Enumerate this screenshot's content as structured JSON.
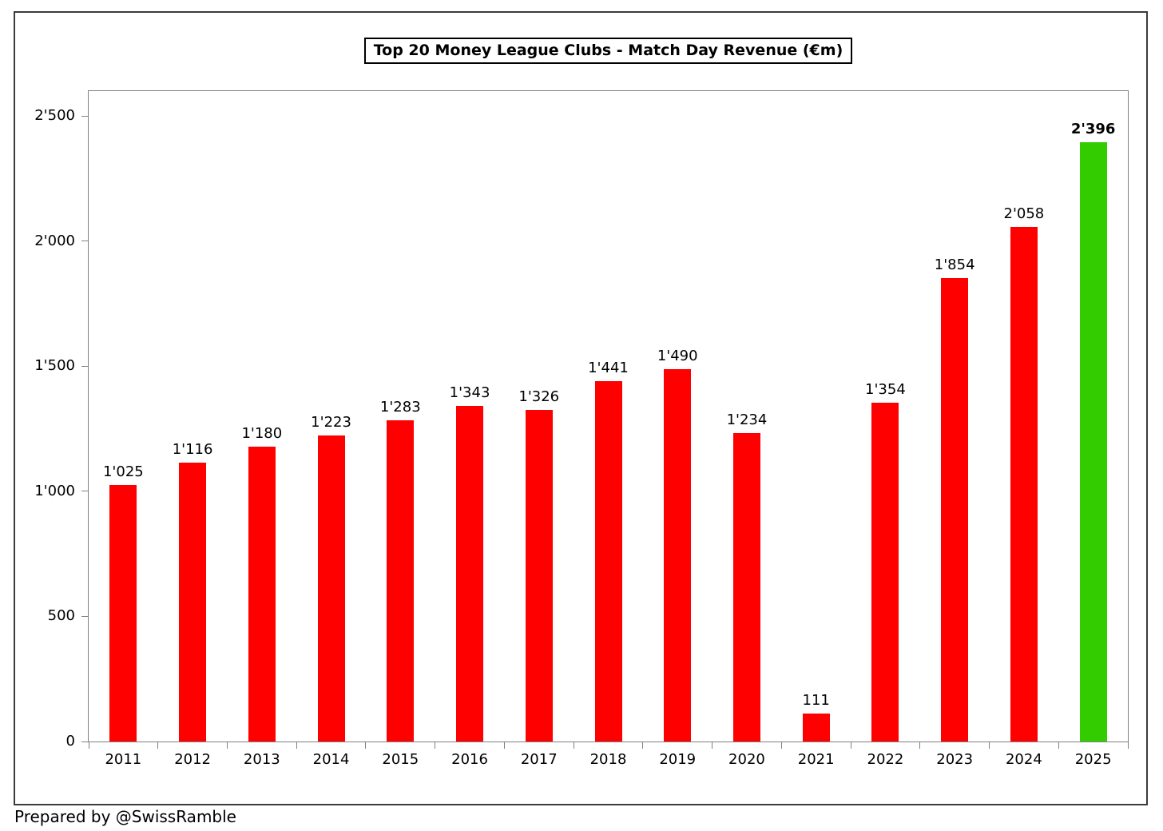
{
  "page": {
    "footer": "Prepared by @SwissRamble"
  },
  "chart_data": {
    "type": "bar",
    "title": "Top 20 Money League Clubs - Match Day Revenue (€m)",
    "categories": [
      "2011",
      "2012",
      "2013",
      "2014",
      "2015",
      "2016",
      "2017",
      "2018",
      "2019",
      "2020",
      "2021",
      "2022",
      "2023",
      "2024",
      "2025"
    ],
    "values": [
      1025,
      1116,
      1180,
      1223,
      1283,
      1343,
      1326,
      1441,
      1490,
      1234,
      111,
      1354,
      1854,
      2058,
      2396
    ],
    "value_labels": [
      "1'025",
      "1'116",
      "1'180",
      "1'223",
      "1'283",
      "1'343",
      "1'326",
      "1'441",
      "1'490",
      "1'234",
      "111",
      "1'354",
      "1'854",
      "2'058",
      "2'396"
    ],
    "highlight_index": 14,
    "colors": {
      "bar_default": "#ff0000",
      "bar_highlight": "#33cc00",
      "axis_line": "#808080",
      "frame_border": "#3b3b3b",
      "text": "#000000"
    },
    "xlabel": "",
    "ylabel": "",
    "ylim": [
      0,
      2600
    ],
    "yticks": [
      0,
      500,
      1000,
      1500,
      2000,
      2500
    ],
    "ytick_labels": [
      "0",
      "500",
      "1'000",
      "1'500",
      "2'000",
      "2'500"
    ],
    "grid": false,
    "legend": null
  }
}
